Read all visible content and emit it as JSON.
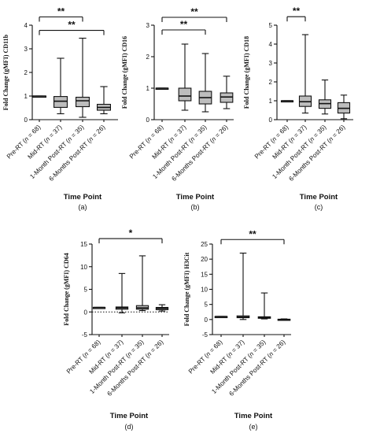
{
  "colors": {
    "box_fill": "#bdbdbd",
    "stroke": "#111111",
    "background": "#ffffff"
  },
  "chart_data": [
    {
      "type": "boxplot",
      "panel_label": "(a)",
      "ylabel": "Fold Change (gMFI) CD11b",
      "xlabel": "Time Point",
      "ylim": [
        0,
        4
      ],
      "yticks": [
        "0",
        "1",
        "2",
        "3",
        "4"
      ],
      "categories": [
        "Pre-RT (n = 68)",
        "Mid-RT (n = 37)",
        "1-Month Post-RT (n = 35)",
        "6-Months Post-RT (n = 26)"
      ],
      "boxes": [
        {
          "min": 1.0,
          "q1": 1.0,
          "median": 1.0,
          "q3": 1.0,
          "max": 1.0
        },
        {
          "min": 0.25,
          "q1": 0.52,
          "median": 0.78,
          "q3": 0.98,
          "max": 2.6
        },
        {
          "min": 0.1,
          "q1": 0.55,
          "median": 0.8,
          "q3": 0.95,
          "max": 3.45
        },
        {
          "min": 0.25,
          "q1": 0.4,
          "median": 0.52,
          "q3": 0.65,
          "max": 1.4
        }
      ],
      "significance": [
        {
          "from": 0,
          "to": 2,
          "label": "**",
          "y": 4.35
        },
        {
          "from": 0,
          "to": 3,
          "label": "**",
          "y": 3.78
        }
      ]
    },
    {
      "type": "boxplot",
      "panel_label": "(b)",
      "ylabel": "Fold Change (gMFI) CD16",
      "xlabel": "Time Point",
      "ylim": [
        0,
        3
      ],
      "yticks": [
        "0",
        "1",
        "2",
        "3"
      ],
      "categories": [
        "Pre-RT (n = 68)",
        "Mid-RT (n = 37)",
        "1-Month Post-RT (n = 35)",
        "6-Months Post-RT (n = 26)"
      ],
      "boxes": [
        {
          "min": 1.0,
          "q1": 1.0,
          "median": 1.0,
          "q3": 1.0,
          "max": 1.0
        },
        {
          "min": 0.3,
          "q1": 0.6,
          "median": 0.75,
          "q3": 1.0,
          "max": 2.4
        },
        {
          "min": 0.25,
          "q1": 0.5,
          "median": 0.7,
          "q3": 0.9,
          "max": 2.1
        },
        {
          "min": 0.35,
          "q1": 0.55,
          "median": 0.72,
          "q3": 0.85,
          "max": 1.38
        }
      ],
      "significance": [
        {
          "from": 0,
          "to": 3,
          "label": "**",
          "y": 3.25
        },
        {
          "from": 0,
          "to": 2,
          "label": "**",
          "y": 2.85
        }
      ]
    },
    {
      "type": "boxplot",
      "panel_label": "(c)",
      "ylabel": "Fold Change (gMFI) CD18",
      "xlabel": "Time Point",
      "ylim": [
        0,
        5
      ],
      "yticks": [
        "0",
        "1",
        "2",
        "3",
        "4",
        "5"
      ],
      "categories": [
        "Pre-RT (n = 68)",
        "Mid-RT (n = 37)",
        "1-Month Post-RT (n = 35)",
        "6-Months Post-RT (n = 26)"
      ],
      "boxes": [
        {
          "min": 1.0,
          "q1": 1.0,
          "median": 1.0,
          "q3": 1.0,
          "max": 1.0
        },
        {
          "min": 0.35,
          "q1": 0.7,
          "median": 0.95,
          "q3": 1.25,
          "max": 4.5
        },
        {
          "min": 0.3,
          "q1": 0.6,
          "median": 0.85,
          "q3": 1.05,
          "max": 2.1
        },
        {
          "min": 0.05,
          "q1": 0.35,
          "median": 0.6,
          "q3": 0.9,
          "max": 1.3
        }
      ],
      "significance": [
        {
          "from": 0,
          "to": 1,
          "label": "**",
          "y": 5.45
        }
      ]
    },
    {
      "type": "boxplot",
      "panel_label": "(d)",
      "ylabel": "Fold Change (gMFI) CD64",
      "xlabel": "Time Point",
      "ylim": [
        -5,
        15
      ],
      "yticks": [
        "-5",
        "0",
        "5",
        "10",
        "15"
      ],
      "dotted_zero_line": true,
      "categories": [
        "Pre-RT (n = 68)",
        "Mid-RT (n = 37)",
        "1-Month Post-RT (n = 35)",
        "6-Months Post-RT (n = 26)"
      ],
      "boxes": [
        {
          "min": 1.0,
          "q1": 1.0,
          "median": 1.0,
          "q3": 1.0,
          "max": 1.0
        },
        {
          "min": -0.2,
          "q1": 0.6,
          "median": 0.9,
          "q3": 1.1,
          "max": 8.5
        },
        {
          "min": 0.3,
          "q1": 0.6,
          "median": 0.9,
          "q3": 1.4,
          "max": 12.4
        },
        {
          "min": 0.2,
          "q1": 0.5,
          "median": 0.8,
          "q3": 1.0,
          "max": 1.6
        }
      ],
      "significance": [
        {
          "from": 0,
          "to": 3,
          "label": "*",
          "y": 16.2
        }
      ]
    },
    {
      "type": "boxplot",
      "panel_label": "(e)",
      "ylabel": "Fold Change (gMFI) H3Cit",
      "xlabel": "Time Point",
      "ylim": [
        -5,
        25
      ],
      "yticks": [
        "-5",
        "0",
        "5",
        "10",
        "15",
        "20",
        "25"
      ],
      "categories": [
        "Pre-RT (n = 68)",
        "Mid-RT (n = 37)",
        "1-Month Post-RT (n = 35)",
        "6-Months Post-RT (n = 26)"
      ],
      "boxes": [
        {
          "min": 1.0,
          "q1": 1.0,
          "median": 1.0,
          "q3": 1.0,
          "max": 1.0
        },
        {
          "min": 0.0,
          "q1": 0.6,
          "median": 0.8,
          "q3": 1.2,
          "max": 22.0
        },
        {
          "min": 0.2,
          "q1": 0.4,
          "median": 0.7,
          "q3": 0.9,
          "max": 8.8
        },
        {
          "min": -0.2,
          "q1": -0.1,
          "median": 0.0,
          "q3": 0.1,
          "max": 0.2
        }
      ],
      "significance": [
        {
          "from": 0,
          "to": 3,
          "label": "**",
          "y": 26.5
        }
      ]
    }
  ]
}
